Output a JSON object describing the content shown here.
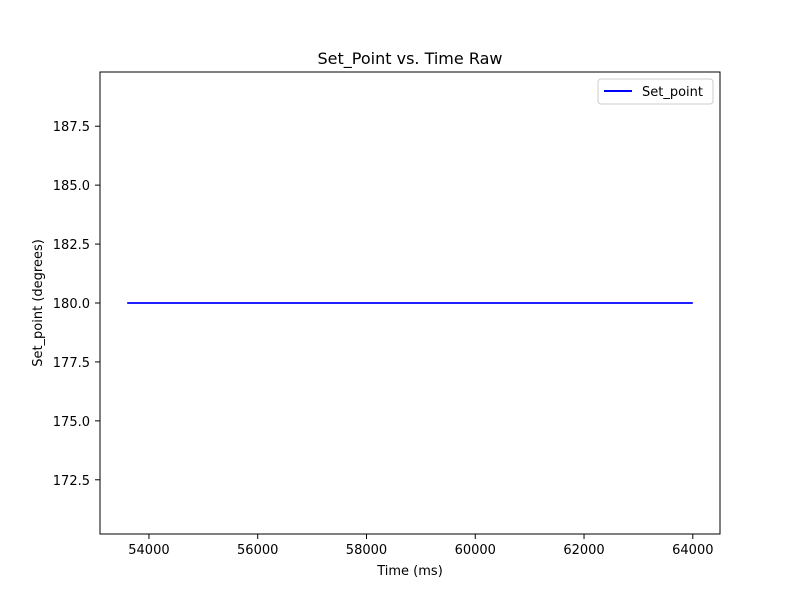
{
  "chart_data": {
    "type": "line",
    "title": "Set_Point vs. Time Raw",
    "xlabel": "Time (ms)",
    "ylabel": "Set_point (degrees)",
    "xlim": [
      53100,
      64500
    ],
    "ylim": [
      170.2,
      189.8
    ],
    "xticks": [
      54000,
      56000,
      58000,
      60000,
      62000,
      64000
    ],
    "xtick_labels": [
      "54000",
      "56000",
      "58000",
      "60000",
      "62000",
      "64000"
    ],
    "yticks": [
      172.5,
      175.0,
      177.5,
      180.0,
      182.5,
      185.0,
      187.5
    ],
    "ytick_labels": [
      "172.5",
      "175.0",
      "177.5",
      "180.0",
      "182.5",
      "185.0",
      "187.5"
    ],
    "grid": false,
    "legend": {
      "placement": "top-right"
    },
    "series": [
      {
        "name": "Set_point",
        "color": "#0000ff",
        "x": [
          53600,
          64000
        ],
        "y": [
          180.0,
          180.0
        ]
      }
    ]
  }
}
